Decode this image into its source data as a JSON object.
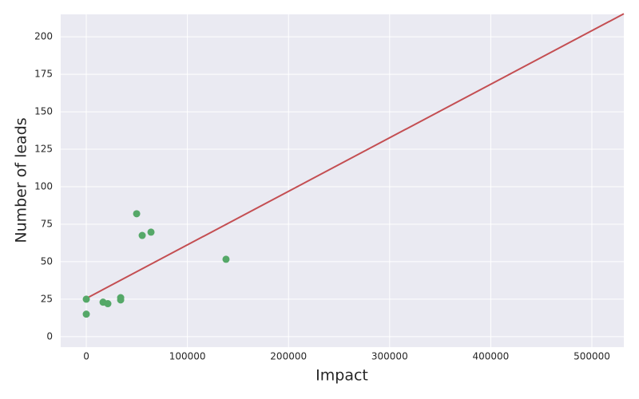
{
  "chart_data": {
    "type": "scatter",
    "x_label": "Impact",
    "y_label": "Number of leads",
    "x": [
      0,
      0,
      16600,
      21300,
      34000,
      34000,
      49800,
      55300,
      64000,
      138200
    ],
    "y": [
      25,
      15,
      23,
      22,
      26,
      24.5,
      82,
      67.5,
      69.7,
      51.6
    ],
    "color": "#55a868",
    "fit": {
      "x": [
        0,
        531600
      ],
      "y": [
        25.5,
        215.4
      ],
      "color": "#c44e52"
    },
    "xlim": [
      -25300,
      531600
    ],
    "ylim": [
      -7,
      215
    ],
    "xticks": [
      0,
      100000,
      200000,
      300000,
      400000,
      500000
    ],
    "yticks": [
      0,
      25,
      50,
      75,
      100,
      125,
      150,
      175,
      200
    ],
    "grid": true,
    "background": "#eaeaf2"
  }
}
